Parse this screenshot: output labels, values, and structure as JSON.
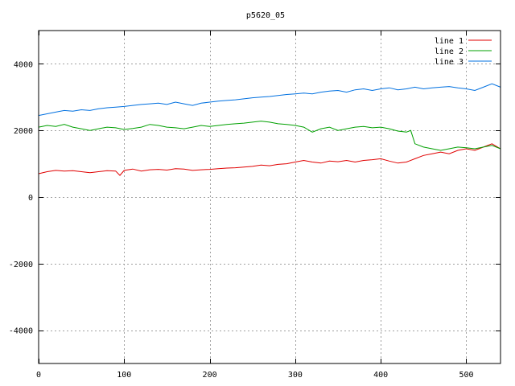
{
  "chart_data": {
    "type": "line",
    "title": "p5620_05",
    "xlabel": "",
    "ylabel": "",
    "xlim": [
      0,
      540
    ],
    "ylim": [
      -5000,
      5000
    ],
    "xticks": [
      0,
      100,
      200,
      300,
      400,
      500
    ],
    "yticks": [
      -4000,
      -2000,
      0,
      2000,
      4000
    ],
    "xtick_labels": [
      "0",
      "100",
      "200",
      "300",
      "400",
      "500"
    ],
    "ytick_labels": [
      "-4000",
      "-2000",
      "0",
      "2000",
      "4000"
    ],
    "grid": true,
    "legend_position": "top-right",
    "series": [
      {
        "name": "line 1",
        "color": "#e00000",
        "x": [
          0,
          10,
          20,
          30,
          40,
          50,
          60,
          70,
          80,
          90,
          95,
          100,
          110,
          120,
          130,
          140,
          150,
          160,
          170,
          180,
          190,
          200,
          210,
          220,
          230,
          240,
          250,
          260,
          270,
          280,
          290,
          300,
          310,
          320,
          330,
          340,
          350,
          360,
          370,
          380,
          390,
          400,
          410,
          420,
          430,
          440,
          450,
          460,
          470,
          480,
          490,
          500,
          510,
          520,
          530,
          540
        ],
        "y": [
          700,
          760,
          800,
          780,
          790,
          760,
          730,
          760,
          790,
          780,
          650,
          800,
          840,
          780,
          820,
          830,
          810,
          850,
          840,
          800,
          820,
          830,
          850,
          870,
          880,
          900,
          920,
          960,
          940,
          980,
          1000,
          1050,
          1100,
          1050,
          1020,
          1080,
          1060,
          1100,
          1050,
          1100,
          1120,
          1150,
          1080,
          1020,
          1050,
          1150,
          1250,
          1300,
          1350,
          1300,
          1400,
          1450,
          1400,
          1500,
          1600,
          1450
        ]
      },
      {
        "name": "line 2",
        "color": "#00a000",
        "x": [
          0,
          10,
          20,
          30,
          40,
          50,
          60,
          70,
          80,
          90,
          100,
          110,
          120,
          130,
          140,
          150,
          160,
          170,
          180,
          190,
          200,
          210,
          220,
          230,
          240,
          250,
          260,
          270,
          280,
          290,
          300,
          310,
          320,
          330,
          340,
          350,
          360,
          370,
          380,
          390,
          400,
          410,
          420,
          430,
          435,
          440,
          450,
          460,
          470,
          480,
          490,
          500,
          510,
          520,
          530,
          540
        ],
        "y": [
          2100,
          2150,
          2120,
          2180,
          2100,
          2050,
          2000,
          2050,
          2100,
          2080,
          2030,
          2060,
          2100,
          2180,
          2150,
          2100,
          2080,
          2050,
          2100,
          2150,
          2120,
          2150,
          2180,
          2200,
          2220,
          2250,
          2280,
          2250,
          2200,
          2180,
          2150,
          2100,
          1950,
          2050,
          2100,
          2000,
          2050,
          2100,
          2120,
          2080,
          2100,
          2050,
          1980,
          1950,
          2000,
          1600,
          1500,
          1450,
          1400,
          1450,
          1500,
          1480,
          1450,
          1500,
          1550,
          1450
        ]
      },
      {
        "name": "line 3",
        "color": "#0070e0",
        "x": [
          0,
          10,
          20,
          30,
          40,
          50,
          60,
          70,
          80,
          90,
          100,
          110,
          120,
          130,
          140,
          150,
          160,
          170,
          180,
          190,
          200,
          210,
          220,
          230,
          240,
          250,
          260,
          270,
          280,
          290,
          300,
          310,
          320,
          330,
          340,
          350,
          360,
          370,
          380,
          390,
          400,
          410,
          420,
          430,
          440,
          450,
          460,
          470,
          480,
          490,
          500,
          510,
          520,
          530,
          540
        ],
        "y": [
          2450,
          2500,
          2550,
          2600,
          2580,
          2620,
          2600,
          2650,
          2680,
          2700,
          2720,
          2750,
          2780,
          2800,
          2820,
          2780,
          2850,
          2800,
          2750,
          2820,
          2850,
          2880,
          2900,
          2920,
          2950,
          2980,
          3000,
          3020,
          3050,
          3080,
          3100,
          3120,
          3100,
          3150,
          3180,
          3200,
          3150,
          3220,
          3250,
          3200,
          3250,
          3280,
          3220,
          3250,
          3300,
          3250,
          3280,
          3300,
          3320,
          3280,
          3250,
          3200,
          3300,
          3400,
          3300
        ]
      }
    ]
  }
}
